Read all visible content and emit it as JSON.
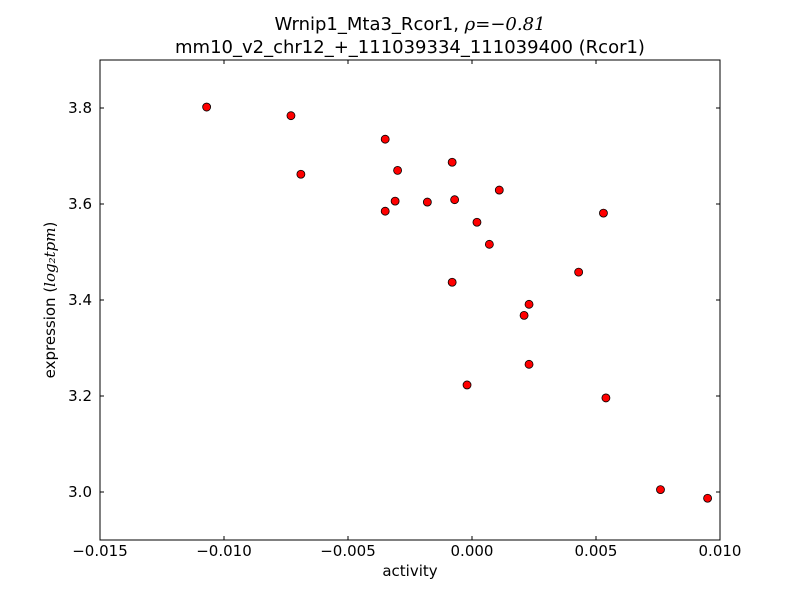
{
  "chart_data": {
    "type": "scatter",
    "title_line1_prefix": "Wrnip1_Mta3_Rcor1, ",
    "rho_symbol": "ρ",
    "rho_value": "=−0.81",
    "title_line2": "mm10_v2_chr12_+_111039334_111039400 (Rcor1)",
    "xlabel": "activity",
    "ylabel_prefix": "expression (",
    "ylabel_math": "log₂tpm",
    "ylabel_suffix": ")",
    "xlim": [
      -0.015,
      0.01
    ],
    "ylim": [
      2.9,
      3.9
    ],
    "xticks": [
      -0.015,
      -0.01,
      -0.005,
      0.0,
      0.005,
      0.01
    ],
    "xtick_labels": [
      "−0.015",
      "−0.010",
      "−0.005",
      "0.000",
      "0.005",
      "0.010"
    ],
    "yticks": [
      3.0,
      3.2,
      3.4,
      3.6,
      3.8
    ],
    "ytick_labels": [
      "3.0",
      "3.2",
      "3.4",
      "3.6",
      "3.8"
    ],
    "marker_color": "#ff0000",
    "marker_edge": "#000000",
    "points": [
      {
        "x": -0.0107,
        "y": 3.802
      },
      {
        "x": -0.0073,
        "y": 3.784
      },
      {
        "x": -0.0069,
        "y": 3.662
      },
      {
        "x": -0.0035,
        "y": 3.735
      },
      {
        "x": -0.003,
        "y": 3.67
      },
      {
        "x": -0.0031,
        "y": 3.606
      },
      {
        "x": -0.0035,
        "y": 3.585
      },
      {
        "x": -0.0018,
        "y": 3.604
      },
      {
        "x": -0.0008,
        "y": 3.687
      },
      {
        "x": -0.0007,
        "y": 3.609
      },
      {
        "x": -0.0008,
        "y": 3.437
      },
      {
        "x": -0.0002,
        "y": 3.223
      },
      {
        "x": 0.0011,
        "y": 3.629
      },
      {
        "x": 0.0002,
        "y": 3.562
      },
      {
        "x": 0.0007,
        "y": 3.516
      },
      {
        "x": 0.0023,
        "y": 3.391
      },
      {
        "x": 0.0021,
        "y": 3.368
      },
      {
        "x": 0.0023,
        "y": 3.266
      },
      {
        "x": 0.0043,
        "y": 3.458
      },
      {
        "x": 0.0053,
        "y": 3.581
      },
      {
        "x": 0.0054,
        "y": 3.196
      },
      {
        "x": 0.0076,
        "y": 3.005
      },
      {
        "x": 0.0095,
        "y": 2.987
      }
    ]
  }
}
